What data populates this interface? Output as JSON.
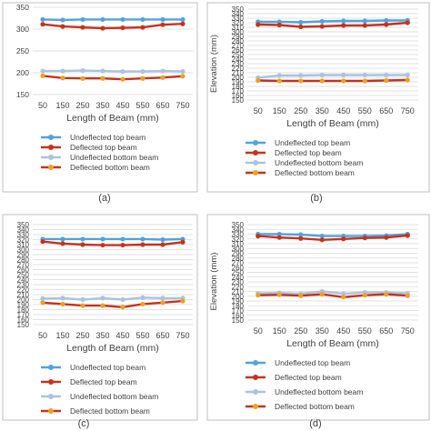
{
  "colors": {
    "undeflected_top": "#4fa3e0",
    "deflected_top": "#c8321a",
    "undeflected_bottom": "#a9c3e0",
    "deflected_bottom": "#f0a020",
    "deflected_bottom_line": "#c8321a",
    "grid": "#d9d9d9",
    "frame": "#bfbfbf"
  },
  "chart_data": [
    {
      "type": "line",
      "caption": "(a)",
      "xlabel": "Length of Beam (mm)",
      "ylabel": "",
      "x": [
        50,
        150,
        250,
        350,
        450,
        550,
        650,
        750
      ],
      "yticks": [
        150,
        200,
        250,
        300,
        350
      ],
      "ylim": [
        150,
        350
      ],
      "grid": "horizontal",
      "legend_position": "bottom",
      "series": [
        {
          "name": "Undeflected top beam",
          "marker": "circle",
          "values": [
            322,
            321,
            322,
            322,
            322,
            322,
            322,
            322
          ]
        },
        {
          "name": "Deflected top beam",
          "marker": "circle",
          "values": [
            311,
            306,
            304,
            302,
            303,
            304,
            310,
            312
          ]
        },
        {
          "name": "Undeflected bottom beam",
          "marker": "circle",
          "values": [
            204,
            204,
            205,
            204,
            203,
            203,
            204,
            203
          ]
        },
        {
          "name": "Deflected bottom beam",
          "marker": "circle",
          "values": [
            193,
            188,
            187,
            187,
            185,
            187,
            189,
            192
          ]
        }
      ]
    },
    {
      "type": "line",
      "caption": "(b)",
      "xlabel": "Length of Beam (mm)",
      "ylabel": "Elevation (mm)",
      "x": [
        50,
        150,
        250,
        350,
        450,
        550,
        650,
        750
      ],
      "yticks": [
        150,
        160,
        170,
        180,
        190,
        200,
        210,
        220,
        230,
        240,
        250,
        260,
        270,
        280,
        290,
        300,
        310,
        320,
        330,
        340,
        350
      ],
      "ylim": [
        150,
        350
      ],
      "grid": "horizontal",
      "legend_position": "bottom",
      "series": [
        {
          "name": "Undeflected top beam",
          "marker": "circle",
          "values": [
            322,
            322,
            321,
            323,
            324,
            324,
            325,
            325
          ]
        },
        {
          "name": "Deflected top beam",
          "marker": "circle",
          "values": [
            316,
            315,
            311,
            312,
            314,
            314,
            316,
            320
          ]
        },
        {
          "name": "Undeflected bottom beam",
          "marker": "circle",
          "values": [
            199,
            204,
            204,
            205,
            205,
            205,
            205,
            205
          ]
        },
        {
          "name": "Deflected bottom beam",
          "marker": "circle",
          "values": [
            193,
            192,
            192,
            192,
            192,
            192,
            193,
            194
          ]
        }
      ]
    },
    {
      "type": "line",
      "caption": "(c)",
      "xlabel": "Length of Beam (mm)",
      "ylabel": "",
      "x": [
        50,
        150,
        250,
        350,
        450,
        550,
        650,
        750
      ],
      "yticks": [
        150,
        160,
        170,
        180,
        190,
        200,
        210,
        220,
        230,
        240,
        250,
        260,
        270,
        280,
        290,
        300,
        310,
        320,
        330,
        340,
        350
      ],
      "ylim": [
        150,
        350
      ],
      "grid": "horizontal",
      "legend_position": "bottom",
      "series": [
        {
          "name": "Undeflected top beam",
          "marker": "circle",
          "values": [
            321,
            321,
            321,
            321,
            321,
            321,
            320,
            321
          ]
        },
        {
          "name": "Deflected top beam",
          "marker": "circle",
          "values": [
            316,
            312,
            310,
            309,
            309,
            310,
            310,
            315
          ]
        },
        {
          "name": "Undeflected bottom beam",
          "marker": "circle",
          "values": [
            202,
            203,
            200,
            203,
            200,
            204,
            203,
            203
          ]
        },
        {
          "name": "Deflected bottom beam",
          "marker": "circle",
          "values": [
            194,
            191,
            188,
            188,
            185,
            191,
            194,
            197
          ]
        }
      ]
    },
    {
      "type": "line",
      "caption": "(d)",
      "xlabel": "Length of Beam (mm)",
      "ylabel": "Elevation (mm)",
      "x": [
        50,
        150,
        250,
        350,
        450,
        550,
        650,
        750
      ],
      "yticks": [
        150,
        160,
        170,
        180,
        190,
        200,
        210,
        220,
        230,
        240,
        250,
        260,
        270,
        280,
        290,
        300,
        310,
        320,
        330,
        340,
        350
      ],
      "ylim": [
        150,
        350
      ],
      "grid": "horizontal",
      "legend_position": "bottom",
      "series": [
        {
          "name": "Undeflected top beam",
          "marker": "circle",
          "values": [
            330,
            330,
            329,
            326,
            326,
            326,
            327,
            330
          ]
        },
        {
          "name": "Deflected top beam",
          "marker": "circle",
          "values": [
            326,
            323,
            321,
            318,
            320,
            322,
            323,
            327
          ]
        },
        {
          "name": "Undeflected bottom beam",
          "marker": "circle",
          "values": [
            206,
            207,
            205,
            210,
            205,
            208,
            208,
            206
          ]
        },
        {
          "name": "Deflected bottom beam",
          "marker": "circle",
          "values": [
            202,
            203,
            201,
            204,
            198,
            202,
            204,
            201
          ]
        }
      ]
    }
  ]
}
